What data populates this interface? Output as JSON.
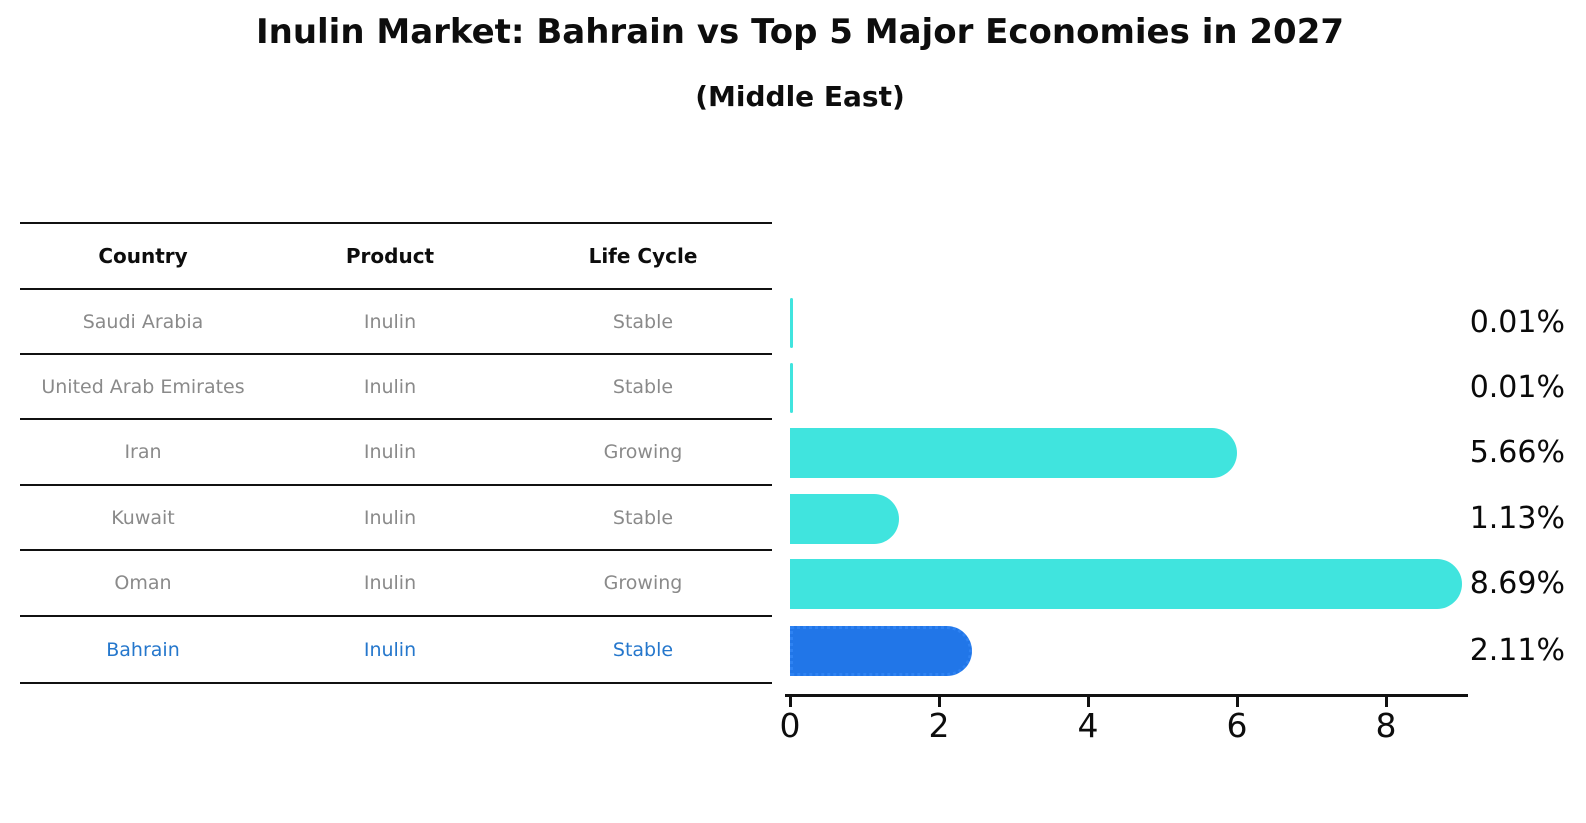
{
  "title": "Inulin Market: Bahrain vs Top 5 Major Economies in 2027",
  "subtitle": "(Middle East)",
  "table": {
    "headers": [
      "Country",
      "Product",
      "Life Cycle"
    ]
  },
  "rows": [
    {
      "country": "Saudi Arabia",
      "product": "Inulin",
      "life_cycle": "Stable",
      "value": 0.01,
      "percent": "0.01%",
      "highlight": false
    },
    {
      "country": "United Arab Emirates",
      "product": "Inulin",
      "life_cycle": "Stable",
      "value": 0.01,
      "percent": "0.01%",
      "highlight": false
    },
    {
      "country": "Iran",
      "product": "Inulin",
      "life_cycle": "Growing",
      "value": 5.66,
      "percent": "5.66%",
      "highlight": false
    },
    {
      "country": "Kuwait",
      "product": "Inulin",
      "life_cycle": "Stable",
      "value": 1.13,
      "percent": "1.13%",
      "highlight": false
    },
    {
      "country": "Oman",
      "product": "Inulin",
      "life_cycle": "Growing",
      "value": 8.69,
      "percent": "8.69%",
      "highlight": false
    },
    {
      "country": "Bahrain",
      "product": "Inulin",
      "life_cycle": "Stable",
      "value": 2.11,
      "percent": "2.11%",
      "highlight": true
    }
  ],
  "colors": {
    "bar": "#40E4DE",
    "highlight_bar": "#2176E8",
    "highlight_text": "#2577cc",
    "body_text": "#8a8a8a",
    "axis_text": "#0d0d0d"
  },
  "chart_data": {
    "type": "bar",
    "orientation": "horizontal",
    "title": "Inulin Market: Bahrain vs Top 5 Major Economies in 2027",
    "subtitle": "(Middle East)",
    "categories": [
      "Saudi Arabia",
      "United Arab Emirates",
      "Iran",
      "Kuwait",
      "Oman",
      "Bahrain"
    ],
    "values": [
      0.01,
      0.01,
      5.66,
      1.13,
      8.69,
      2.11
    ],
    "data_labels": [
      "0.01%",
      "0.01%",
      "5.66%",
      "1.13%",
      "8.69%",
      "2.11%"
    ],
    "table_columns": [
      "Country",
      "Product",
      "Life Cycle"
    ],
    "table_rows": [
      [
        "Saudi Arabia",
        "Inulin",
        "Stable"
      ],
      [
        "United Arab Emirates",
        "Inulin",
        "Stable"
      ],
      [
        "Iran",
        "Inulin",
        "Growing"
      ],
      [
        "Kuwait",
        "Inulin",
        "Stable"
      ],
      [
        "Oman",
        "Inulin",
        "Growing"
      ],
      [
        "Bahrain",
        "Inulin",
        "Stable"
      ]
    ],
    "xlabel": "",
    "ylabel": "",
    "xticks": [
      0,
      2,
      4,
      6,
      8
    ],
    "xlim": [
      0,
      9.1
    ],
    "grid": false,
    "legend": false,
    "bar_color": "#40E4DE",
    "highlight_index": 5,
    "highlight_color": "#2176E8"
  }
}
